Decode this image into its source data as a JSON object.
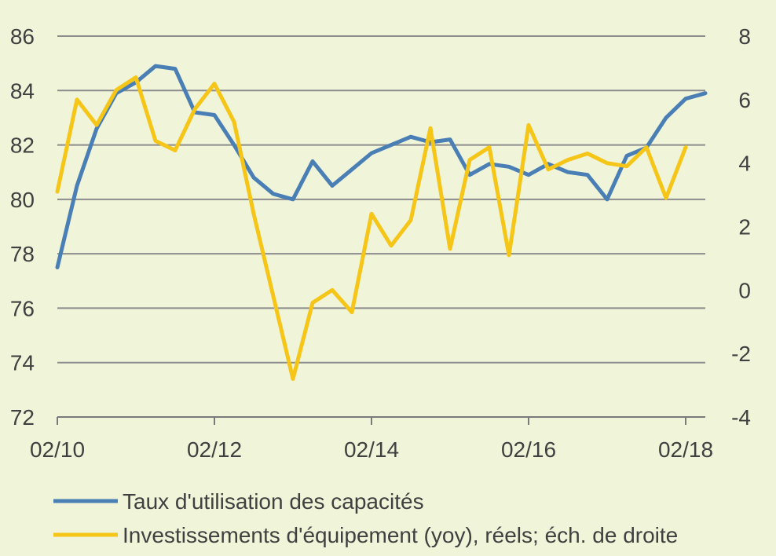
{
  "chart_data": {
    "type": "line",
    "title": "",
    "x_ticks": [
      "02/10",
      "02/12",
      "02/14",
      "02/16",
      "02/18"
    ],
    "x_range": [
      "02/10",
      "05/18"
    ],
    "left_axis": {
      "ylim": [
        72,
        86
      ],
      "ticks": [
        72,
        74,
        76,
        78,
        80,
        82,
        84,
        86
      ]
    },
    "right_axis": {
      "ylim": [
        -4,
        8
      ],
      "ticks": [
        -4,
        -2,
        0,
        2,
        4,
        6,
        8
      ]
    },
    "grid": true,
    "legend_position": "bottom",
    "series": [
      {
        "name": "Taux d'utilisation des capacités",
        "axis": "left",
        "color": "#4a7fb5",
        "x": [
          "02/10",
          "05/10",
          "08/10",
          "11/10",
          "02/11",
          "05/11",
          "08/11",
          "11/11",
          "02/12",
          "05/12",
          "08/12",
          "11/12",
          "02/13",
          "05/13",
          "08/13",
          "11/13",
          "02/14",
          "05/14",
          "08/14",
          "11/14",
          "02/15",
          "05/15",
          "08/15",
          "11/15",
          "02/16",
          "05/16",
          "08/16",
          "11/16",
          "02/17",
          "05/17",
          "08/17",
          "11/17",
          "02/18",
          "05/18"
        ],
        "values": [
          77.5,
          80.5,
          82.6,
          83.9,
          84.3,
          84.9,
          84.8,
          83.2,
          83.1,
          82.0,
          80.8,
          80.2,
          80.0,
          81.4,
          80.5,
          81.1,
          81.7,
          82.0,
          82.3,
          82.1,
          82.2,
          80.9,
          81.3,
          81.2,
          80.9,
          81.3,
          81.0,
          80.9,
          80.0,
          81.6,
          81.9,
          83.0,
          83.7,
          83.9
        ]
      },
      {
        "name": "Investissements d'équipement (yoy), réels; éch. de droite",
        "axis": "right",
        "color": "#f5c518",
        "x": [
          "02/10",
          "05/10",
          "08/10",
          "11/10",
          "02/11",
          "05/11",
          "08/11",
          "11/11",
          "02/12",
          "05/12",
          "08/12",
          "11/12",
          "02/13",
          "05/13",
          "08/13",
          "11/13",
          "02/14",
          "05/14",
          "08/14",
          "11/14",
          "02/15",
          "05/15",
          "08/15",
          "11/15",
          "02/16",
          "05/16",
          "08/16",
          "11/16",
          "02/17",
          "05/17",
          "08/17",
          "11/17",
          "02/18"
        ],
        "values": [
          3.1,
          6.0,
          5.2,
          6.3,
          6.7,
          4.7,
          4.4,
          5.7,
          6.5,
          5.3,
          2.4,
          -0.2,
          -2.8,
          -0.4,
          0.0,
          -0.7,
          2.4,
          1.4,
          2.2,
          5.1,
          1.3,
          4.1,
          4.5,
          1.1,
          5.2,
          3.8,
          4.1,
          4.3,
          4.0,
          3.9,
          4.5,
          2.9,
          4.5
        ]
      }
    ]
  }
}
